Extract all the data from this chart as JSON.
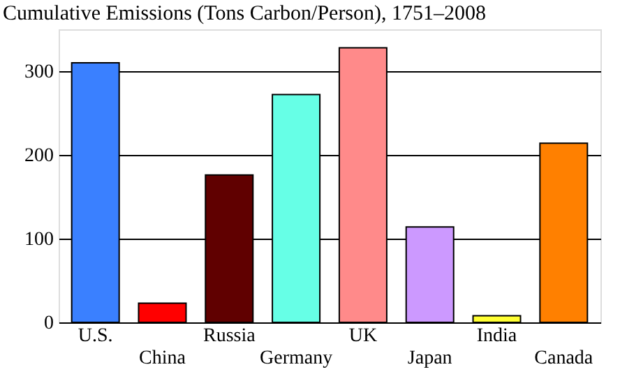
{
  "chart_data": {
    "type": "bar",
    "title": "Cumulative Emissions (Tons Carbon/Person), 1751–2008",
    "categories": [
      "U.S.",
      "China",
      "Russia",
      "Germany",
      "UK",
      "Japan",
      "India",
      "Canada"
    ],
    "values": [
      310,
      23,
      176,
      272,
      328,
      114,
      8,
      214
    ],
    "colors": [
      "#3a80ff",
      "#ff0000",
      "#600000",
      "#66ffe6",
      "#ff8a8a",
      "#cc99ff",
      "#ffff33",
      "#ff8000"
    ],
    "ylim": [
      0,
      350
    ],
    "yticks": [
      0,
      100,
      200,
      300
    ],
    "grid": "y",
    "legend": false
  }
}
